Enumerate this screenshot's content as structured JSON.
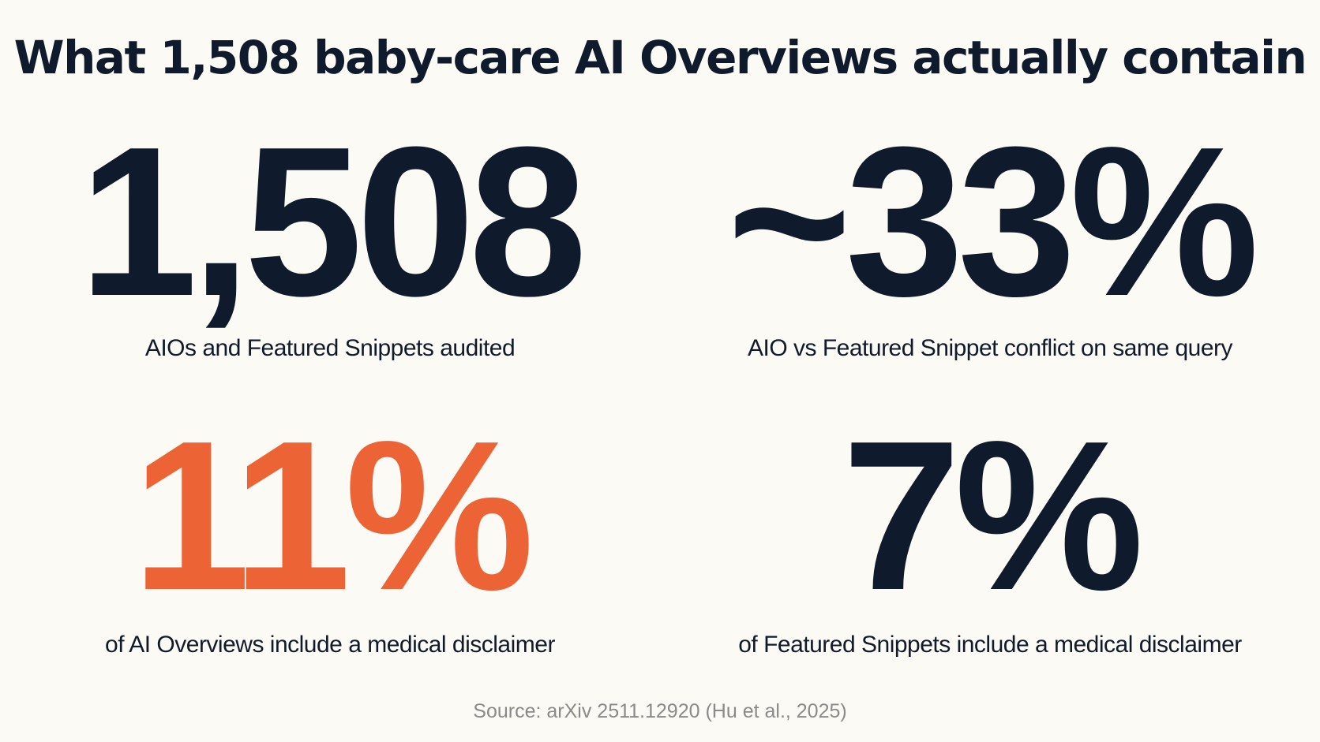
{
  "title": "What 1,508 baby-care AI Overviews actually contain",
  "stats": [
    {
      "value": "1,508",
      "caption": "AIOs and Featured Snippets audited",
      "color": "#0f1b2d"
    },
    {
      "value": "~33%",
      "caption": "AIO vs Featured Snippet conflict on same query",
      "color": "#0f1b2d"
    },
    {
      "value": "11%",
      "caption": "of AI Overviews include a medical disclaimer",
      "color": "#ec6436"
    },
    {
      "value": "7%",
      "caption": "of Featured Snippets include a medical disclaimer",
      "color": "#0f1b2d"
    }
  ],
  "source": {
    "text": "Source: arXiv 2511.12920 (Hu et al., 2025)",
    "color": "#8a8a8a"
  }
}
